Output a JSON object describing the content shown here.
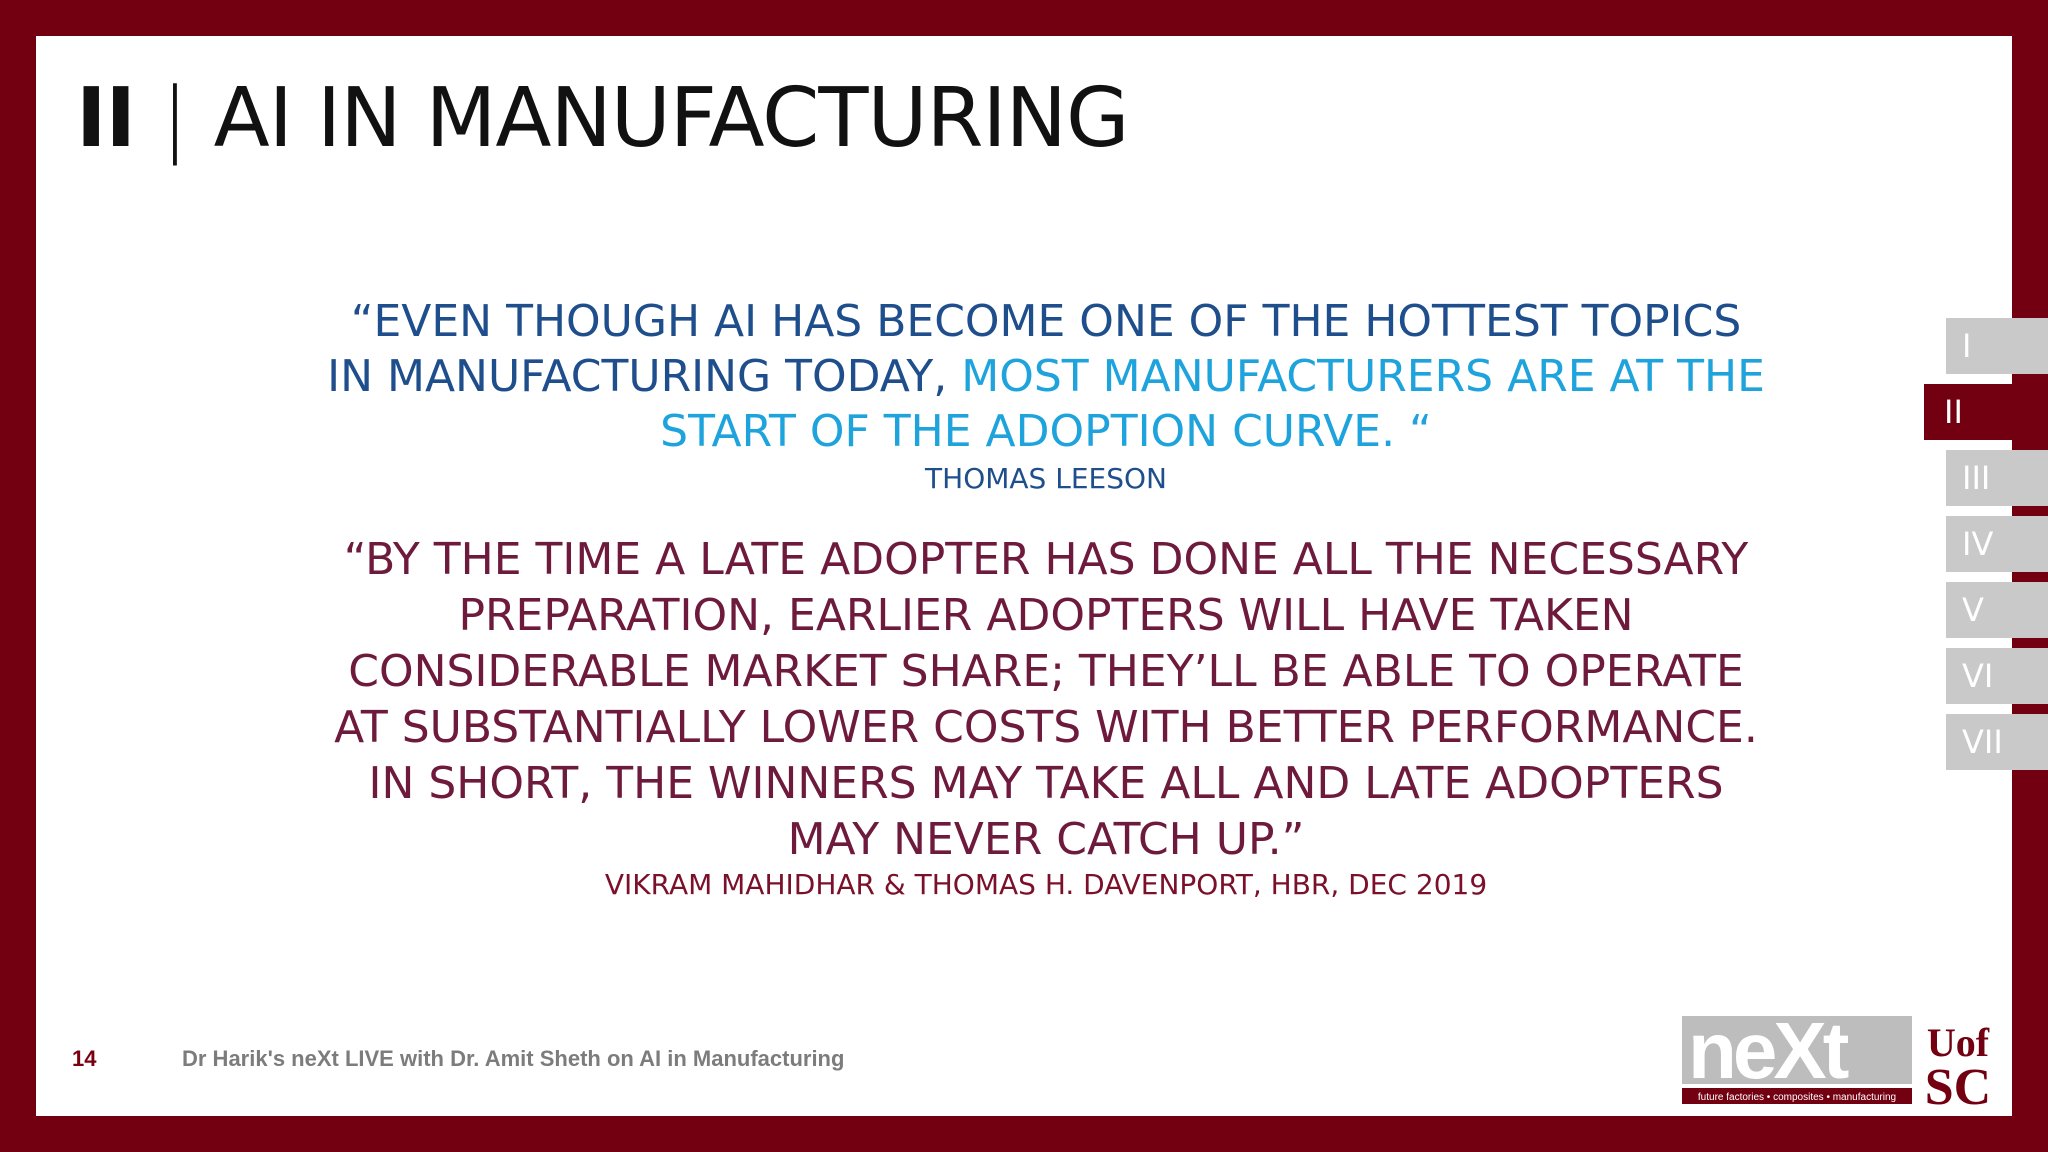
{
  "header": {
    "section_number": "II",
    "separator": "|",
    "title": "AI IN MANUFACTURING"
  },
  "quote1": {
    "part1": "“EVEN THOUGH AI HAS BECOME ONE OF THE HOTTEST TOPICS IN MANUFACTURING TODAY, ",
    "highlight": "MOST MANUFACTURERS ARE AT THE START OF THE ADOPTION CURVE. “",
    "attribution": "THOMAS LEESON"
  },
  "quote2": {
    "text": "“BY THE TIME A LATE ADOPTER HAS DONE ALL THE NECESSARY PREPARATION, EARLIER ADOPTERS WILL HAVE TAKEN CONSIDERABLE MARKET SHARE; THEY’LL BE ABLE TO OPERATE AT SUBSTANTIALLY LOWER COSTS WITH BETTER PERFORMANCE. IN SHORT, THE WINNERS MAY TAKE ALL AND LATE ADOPTERS MAY NEVER CATCH UP.”",
    "attribution": "VIKRAM MAHIDHAR & THOMAS H. DAVENPORT, HBR, DEC 2019"
  },
  "section_nav": {
    "items": [
      "I",
      "II",
      "III",
      "IV",
      "V",
      "VI",
      "VII"
    ],
    "active_index": 1
  },
  "footer": {
    "page_number": "14",
    "text": "Dr Harik's neXt LIVE with Dr. Amit Sheth on AI in Manufacturing"
  },
  "logo": {
    "brand": "neXt",
    "tagline": "future factories • composites • manufacturing",
    "university_top": "Uof",
    "university_bottom": "SC"
  },
  "colors": {
    "frame": "#730010",
    "quote1": "#1f4e8c",
    "quote1_highlight": "#1fa3dc",
    "quote2": "#6e1a3c",
    "nav_inactive": "#c9c9c9"
  }
}
